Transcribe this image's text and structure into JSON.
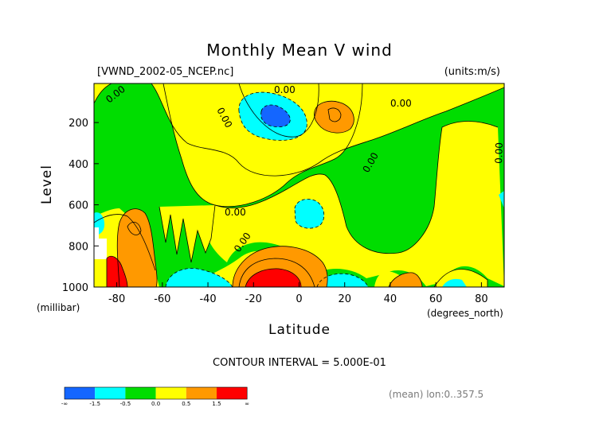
{
  "chart_data": {
    "type": "heatmap",
    "title": "Monthly Mean V wind",
    "subtitle_left": "[VWND_2002-05_NCEP.nc]",
    "subtitle_right": "(units:m/s)",
    "xlabel": "Latitude",
    "x_unit": "(degrees_north)",
    "ylabel": "Level",
    "y_unit": "(millibar)",
    "x_ticks": [
      -80,
      -60,
      -40,
      -20,
      0,
      20,
      40,
      60,
      80
    ],
    "y_ticks": [
      200,
      400,
      600,
      800,
      1000
    ],
    "xlim": [
      -90,
      90
    ],
    "ylim": [
      10,
      1000
    ],
    "contour_interval_text": "CONTOUR INTERVAL = 5.000E-01",
    "contour_labels": [
      "0.00",
      "0.00",
      "0.00",
      "0.00",
      "0.00",
      "0.00",
      "0.00",
      "0.00"
    ],
    "legend": {
      "boundaries": [
        "-∞",
        "-1.5",
        "-0.5",
        "0.0",
        "0.5",
        "1.5",
        "∞"
      ],
      "colors": [
        "#1466ff",
        "#00ffff",
        "#00dd00",
        "#ffff00",
        "#ff9900",
        "#ff0000"
      ]
    },
    "footer_text": "(mean) lon:0..357.5"
  }
}
